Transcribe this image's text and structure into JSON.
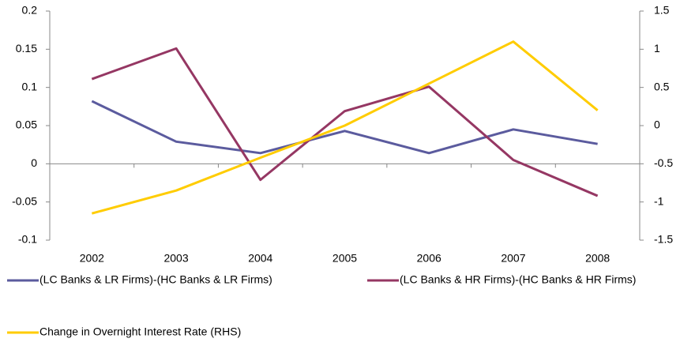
{
  "chart_data": {
    "type": "line",
    "categories": [
      "2002",
      "2003",
      "2004",
      "2005",
      "2006",
      "2007",
      "2008"
    ],
    "series": [
      {
        "name": "(LC Banks & LR Firms)-(HC Banks & LR Firms)",
        "color": "#5b5b9e",
        "values": [
          0.082,
          0.029,
          0.014,
          0.043,
          0.014,
          0.045,
          0.026
        ]
      },
      {
        "name": "(LC Banks & HR Firms)-(HC Banks & HR Firms)",
        "color": "#953763",
        "values": [
          0.111,
          0.151,
          -0.021,
          0.069,
          0.101,
          0.005,
          -0.042
        ]
      },
      {
        "name": "Change in Overnight Interest Rate (RHS)",
        "color": "#ffcc00",
        "axis": "y2",
        "values": [
          -1.15,
          -0.85,
          -0.42,
          0.0,
          0.55,
          1.1,
          0.2
        ]
      }
    ],
    "ylim": [
      -0.1,
      0.2
    ],
    "yticks": [
      0.2,
      0.15,
      0.1,
      0.05,
      0,
      -0.05,
      -0.1
    ],
    "y2lim": [
      -1.5,
      1.5
    ],
    "y2ticks": [
      1.5,
      1,
      0.5,
      0,
      -0.5,
      -1,
      -1.5
    ],
    "grid": false
  }
}
